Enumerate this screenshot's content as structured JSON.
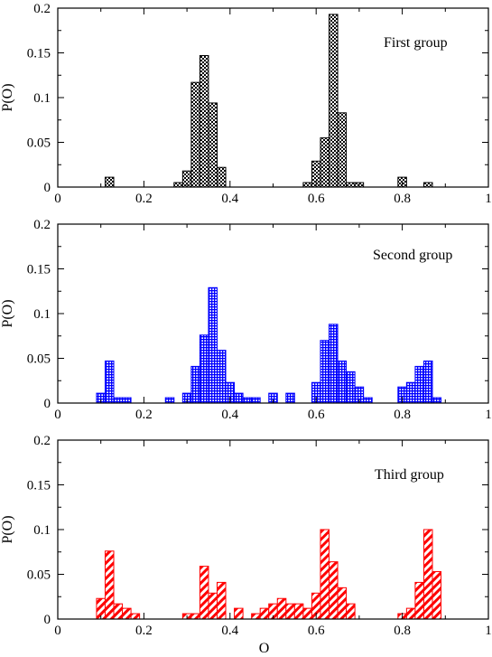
{
  "chart_data": [
    {
      "type": "bar",
      "title": "First group",
      "xlabel": "",
      "ylabel": "P(O)",
      "xlim": [
        0,
        1
      ],
      "ylim": [
        0,
        0.2
      ],
      "x_ticks": [
        "0",
        "0.2",
        "0.4",
        "0.6",
        "0.8",
        "1"
      ],
      "y_ticks": [
        "0",
        "0.05",
        "0.1",
        "0.15",
        "0.2"
      ],
      "bin_width": 0.02,
      "color": "#000000",
      "pattern": "checker",
      "series": [
        {
          "bin_centers": [
            0.12,
            0.28,
            0.3,
            0.32,
            0.34,
            0.36,
            0.38,
            0.58,
            0.6,
            0.62,
            0.64,
            0.66,
            0.68,
            0.7,
            0.8,
            0.86
          ],
          "values": [
            0.011,
            0.005,
            0.018,
            0.117,
            0.147,
            0.094,
            0.022,
            0.005,
            0.029,
            0.055,
            0.193,
            0.083,
            0.005,
            0.005,
            0.011,
            0.005
          ]
        }
      ]
    },
    {
      "type": "bar",
      "title": "Second group",
      "xlabel": "",
      "ylabel": "P(O)",
      "xlim": [
        0,
        1
      ],
      "ylim": [
        0,
        0.2
      ],
      "x_ticks": [
        "0",
        "0.2",
        "0.4",
        "0.6",
        "0.8",
        "1"
      ],
      "y_ticks": [
        "0",
        "0.05",
        "0.1",
        "0.15",
        "0.2"
      ],
      "bin_width": 0.02,
      "color": "#0000ff",
      "pattern": "grid",
      "series": [
        {
          "bin_centers": [
            0.1,
            0.12,
            0.14,
            0.16,
            0.26,
            0.3,
            0.32,
            0.34,
            0.36,
            0.38,
            0.4,
            0.42,
            0.44,
            0.46,
            0.5,
            0.54,
            0.6,
            0.62,
            0.64,
            0.66,
            0.68,
            0.7,
            0.72,
            0.8,
            0.82,
            0.84,
            0.86,
            0.88
          ],
          "values": [
            0.011,
            0.047,
            0.006,
            0.006,
            0.006,
            0.011,
            0.041,
            0.076,
            0.129,
            0.059,
            0.023,
            0.011,
            0.006,
            0.006,
            0.011,
            0.011,
            0.023,
            0.07,
            0.088,
            0.047,
            0.035,
            0.018,
            0.006,
            0.018,
            0.023,
            0.041,
            0.047,
            0.006
          ]
        }
      ]
    },
    {
      "type": "bar",
      "title": "Third group",
      "xlabel": "O",
      "ylabel": "P(O)",
      "xlim": [
        0,
        1
      ],
      "ylim": [
        0,
        0.2
      ],
      "x_ticks": [
        "0",
        "0.2",
        "0.4",
        "0.6",
        "0.8",
        "1"
      ],
      "y_ticks": [
        "0",
        "0.05",
        "0.1",
        "0.15",
        "0.2"
      ],
      "bin_width": 0.02,
      "color": "#ff0000",
      "pattern": "diagonal",
      "series": [
        {
          "bin_centers": [
            0.1,
            0.12,
            0.14,
            0.16,
            0.18,
            0.3,
            0.32,
            0.34,
            0.36,
            0.38,
            0.42,
            0.46,
            0.48,
            0.5,
            0.52,
            0.54,
            0.56,
            0.58,
            0.6,
            0.62,
            0.64,
            0.66,
            0.68,
            0.8,
            0.82,
            0.84,
            0.86,
            0.88
          ],
          "values": [
            0.023,
            0.076,
            0.017,
            0.012,
            0.006,
            0.006,
            0.006,
            0.059,
            0.029,
            0.041,
            0.012,
            0.006,
            0.012,
            0.017,
            0.023,
            0.017,
            0.017,
            0.012,
            0.029,
            0.1,
            0.064,
            0.035,
            0.017,
            0.006,
            0.012,
            0.041,
            0.1,
            0.053
          ]
        }
      ]
    }
  ]
}
